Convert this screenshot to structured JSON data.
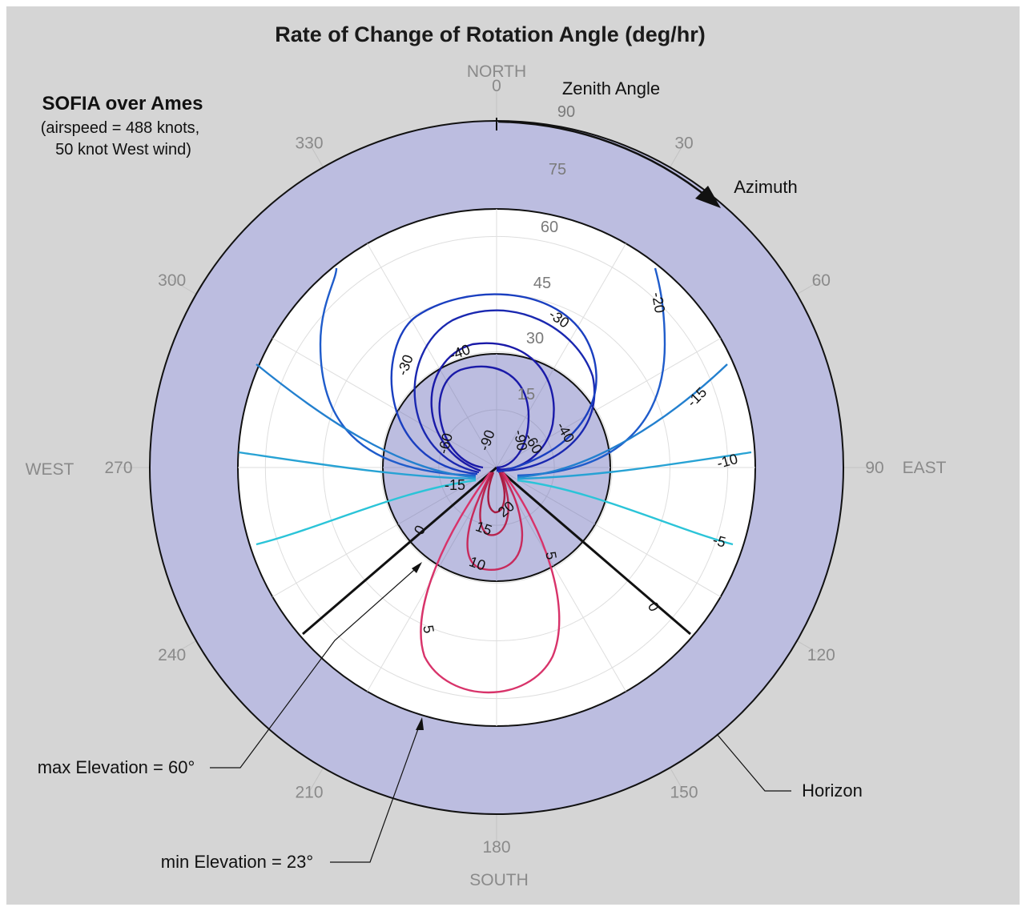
{
  "chart_data": {
    "type": "polar-contour",
    "title": "Rate of Change of Rotation Angle (deg/hr)",
    "subtitle_main": "SOFIA over Ames",
    "subtitle_lines": [
      "(airspeed = 488 knots,",
      "50 knot West wind)"
    ],
    "compass": {
      "north": "NORTH",
      "south": "SOUTH",
      "east": "EAST",
      "west": "WEST"
    },
    "azimuth_ticks": [
      "0",
      "30",
      "60",
      "90",
      "120",
      "150",
      "180",
      "210",
      "240",
      "270",
      "300",
      "330"
    ],
    "zenith_ticks": [
      "15",
      "30",
      "45",
      "60",
      "75",
      "90"
    ],
    "zenith_range": [
      0,
      90
    ],
    "annotations": {
      "zenith_angle": "Zenith Angle",
      "azimuth": "Azimuth",
      "max_elevation": "max Elevation = 60°",
      "min_elevation": "min Elevation = 23°",
      "horizon": "Horizon"
    },
    "elevation_limits": {
      "max_elevation_deg": 60,
      "min_elevation_deg": 23
    },
    "observable_azimuth_range": [
      120,
      240
    ],
    "contour_levels": [
      -90,
      -60,
      -40,
      -30,
      -20,
      -15,
      -10,
      -5,
      0,
      5,
      10,
      15,
      20
    ],
    "contour_labels": [
      {
        "text": "-90"
      },
      {
        "text": "-90"
      },
      {
        "text": "-60"
      },
      {
        "text": "-60"
      },
      {
        "text": "-40"
      },
      {
        "text": "-40"
      },
      {
        "text": "-30"
      },
      {
        "text": "-30"
      },
      {
        "text": "-20"
      },
      {
        "text": "-15"
      },
      {
        "text": "-15"
      },
      {
        "text": "-10"
      },
      {
        "text": "-5"
      },
      {
        "text": "0"
      },
      {
        "text": "0"
      },
      {
        "text": "5"
      },
      {
        "text": "5"
      },
      {
        "text": "10"
      },
      {
        "text": "15"
      },
      {
        "text": "20"
      }
    ],
    "colors": {
      "shaded_band": "#bcbde0",
      "background": "#d5d5d5",
      "negative_dark": "#1a1aa8",
      "negative_mid": "#2b6fd0",
      "negative_light": "#2bc4d8",
      "positive": "#d8336a"
    }
  }
}
